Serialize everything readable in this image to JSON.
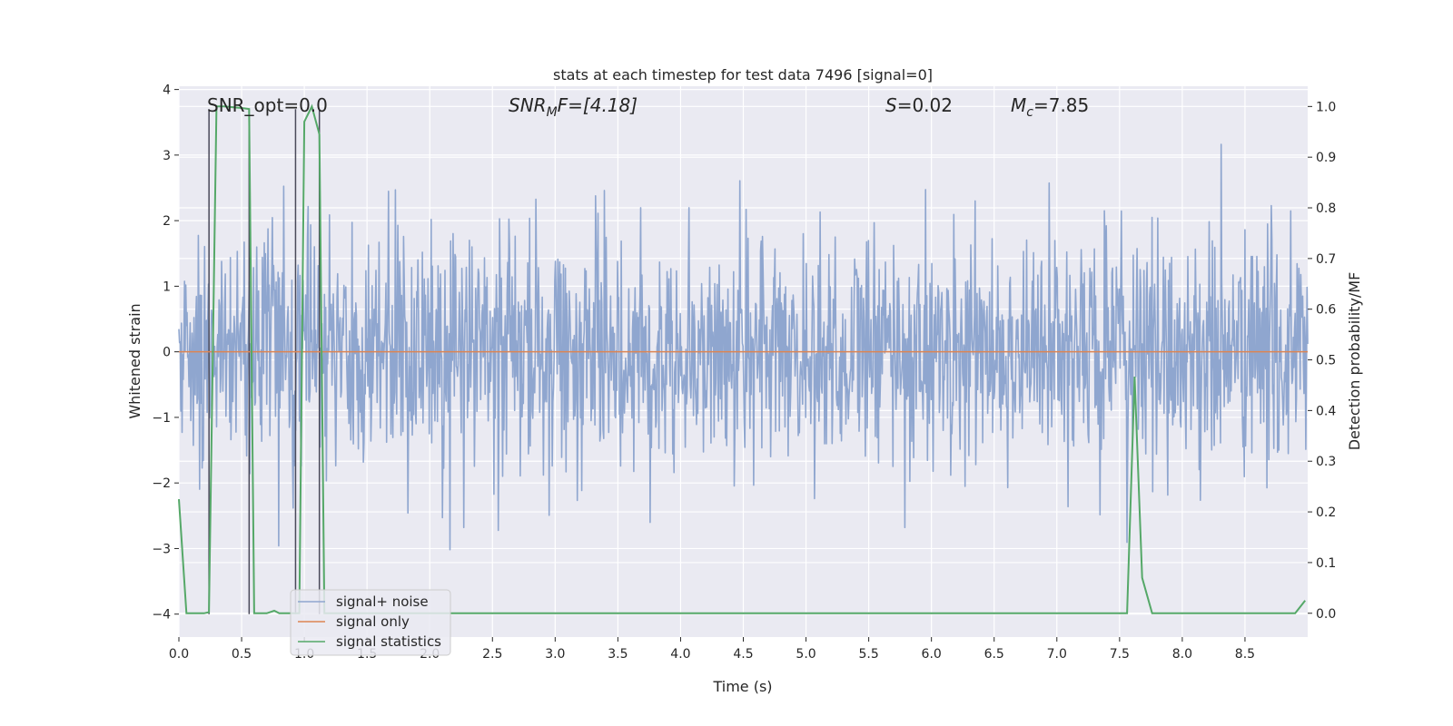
{
  "chart_data": {
    "type": "line",
    "title": "stats at each timestep for test data 7496 [signal=0]",
    "xlabel": "Time (s)",
    "ylabel_left": "Whitened strain",
    "ylabel_right": "Detection probability/MF",
    "xlim": [
      0.0,
      9.0
    ],
    "ylim_left": [
      -4.35,
      4.05
    ],
    "ylim_right": [
      -0.047,
      1.04
    ],
    "x_ticks": [
      0.0,
      0.5,
      1.0,
      1.5,
      2.0,
      2.5,
      3.0,
      3.5,
      4.0,
      4.5,
      5.0,
      5.5,
      6.0,
      6.5,
      7.0,
      7.5,
      8.0,
      8.5
    ],
    "x_tick_labels": [
      "0.0",
      "0.5",
      "1.0",
      "1.5",
      "2.0",
      "2.5",
      "3.0",
      "3.5",
      "4.0",
      "4.5",
      "5.0",
      "5.5",
      "6.0",
      "6.5",
      "7.0",
      "7.5",
      "8.0",
      "8.5"
    ],
    "y_left_ticks": [
      -4,
      -3,
      -2,
      -1,
      0,
      1,
      2,
      3,
      4
    ],
    "y_left_tick_labels": [
      "−4",
      "−3",
      "−2",
      "−1",
      "0",
      "1",
      "2",
      "3",
      "4"
    ],
    "y_right_ticks": [
      0.0,
      0.1,
      0.2,
      0.3,
      0.4,
      0.5,
      0.6,
      0.7,
      0.8,
      0.9,
      1.0
    ],
    "y_right_tick_labels": [
      "0.0",
      "0.1",
      "0.2",
      "0.3",
      "0.4",
      "0.5",
      "0.6",
      "0.7",
      "0.8",
      "0.9",
      "1.0"
    ],
    "annotations": {
      "snr_opt": "SNR_opt=0.0",
      "snr_mf_label": "SNR",
      "snr_mf_sub": "M",
      "snr_mf_rest": "F=[4.18]",
      "s_label": "S",
      "s_value": "=0.02",
      "mc_label": "M",
      "mc_sub": "c",
      "mc_value": "=7.85"
    },
    "series": [
      {
        "name": "signal+ noise",
        "color": "#8fa6cf",
        "axis": "left",
        "description": "whitened noisy strain, approx. zero-mean noise with std ~0.9",
        "sample_count": 1800,
        "typical_range": [
          -2.0,
          2.0
        ]
      },
      {
        "name": "signal only",
        "color": "#dd8452",
        "axis": "left",
        "x": [
          0.0,
          9.0
        ],
        "y": [
          0.0,
          0.0
        ]
      },
      {
        "name": "signal statistics",
        "color": "#55a868",
        "axis": "right",
        "x": [
          0.0,
          0.06,
          0.1,
          0.2,
          0.24,
          0.3,
          0.36,
          0.5,
          0.56,
          0.6,
          0.7,
          0.76,
          0.8,
          0.9,
          0.96,
          1.0,
          1.06,
          1.12,
          1.16,
          1.2,
          7.5,
          7.56,
          7.62,
          7.68,
          7.76,
          8.9,
          8.98
        ],
        "y": [
          0.225,
          0.0,
          0.0,
          0.0,
          0.002,
          1.0,
          1.0,
          0.997,
          0.995,
          0.0,
          0.0,
          0.005,
          0.0,
          0.0,
          0.0,
          0.97,
          1.0,
          0.945,
          0.0,
          0.0,
          0.0,
          0.0,
          0.467,
          0.07,
          0.0,
          0.0,
          0.025
        ]
      },
      {
        "name": "marker lines",
        "color": "#4a4a5a",
        "axis": "left",
        "description": "thin vertical lines in dark grey",
        "x_positions": [
          0.24,
          0.56,
          0.93,
          1.12
        ],
        "y_from": -4.0,
        "y_to": 3.7
      }
    ],
    "legend": {
      "position": "lower-left",
      "entries": [
        "signal+ noise",
        "signal only",
        "signal statistics"
      ]
    },
    "grid": true,
    "background_color": "#eaeaf2",
    "grid_color": "#ffffff"
  }
}
